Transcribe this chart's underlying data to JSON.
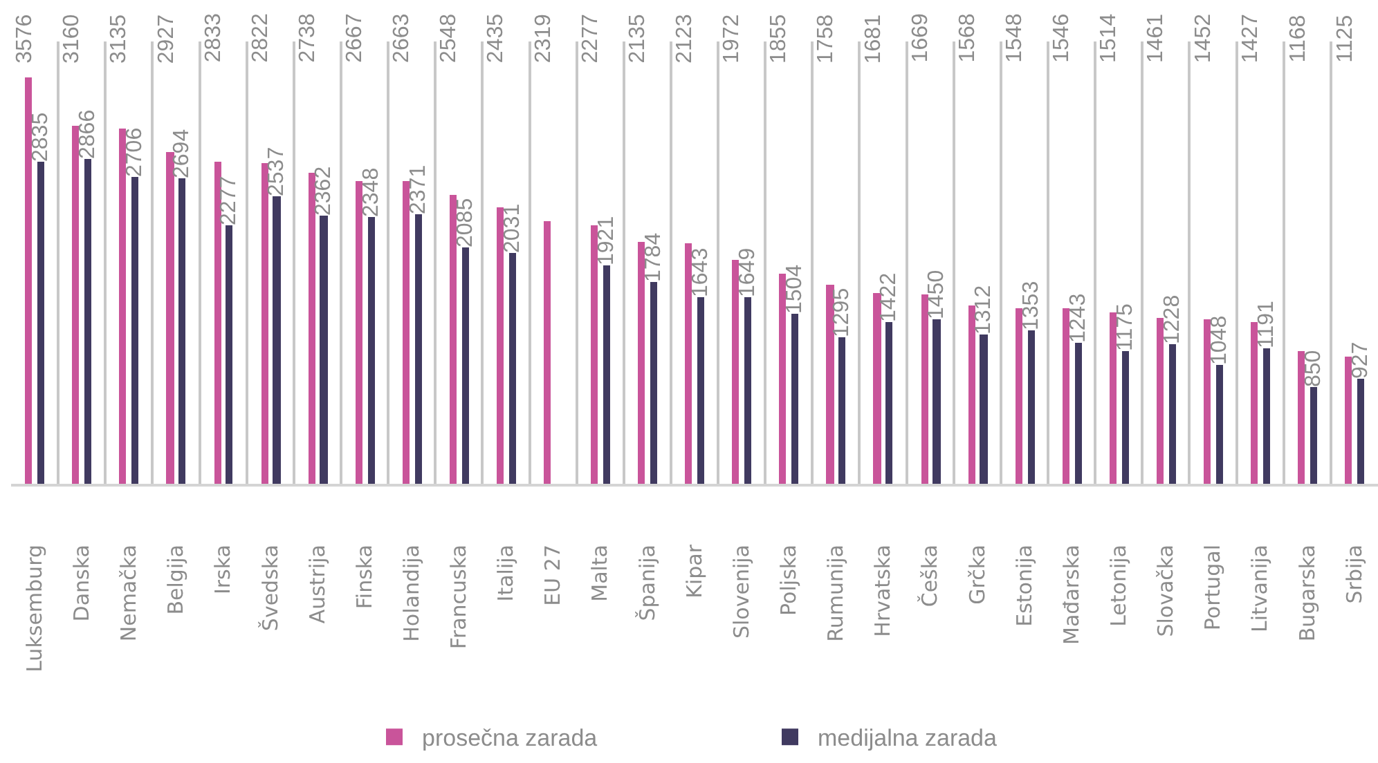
{
  "chart_data": {
    "type": "bar",
    "categories": [
      "Luksemburg",
      "Danska",
      "Nemačka",
      "Belgija",
      "Irska",
      "Švedska",
      "Austrija",
      "Finska",
      "Holandija",
      "Francuska",
      "Italija",
      "EU 27",
      "Malta",
      "Španija",
      "Kipar",
      "Slovenija",
      "Poljska",
      "Rumunija",
      "Hrvatska",
      "Češka",
      "Grčka",
      "Estonija",
      "Mađarska",
      "Letonija",
      "Slovačka",
      "Portugal",
      "Litvanija",
      "Bugarska",
      "Srbija"
    ],
    "series": [
      {
        "name": "prosečna zarada",
        "color": "#c9549a",
        "values": [
          3576,
          3160,
          3135,
          2927,
          2833,
          2822,
          2738,
          2667,
          2663,
          2548,
          2435,
          2319,
          2277,
          2135,
          2123,
          1972,
          1855,
          1758,
          1681,
          1669,
          1568,
          1548,
          1546,
          1514,
          1461,
          1452,
          1427,
          1168,
          1125
        ]
      },
      {
        "name": "medijalna zarada",
        "color": "#403a60",
        "values": [
          2835,
          2866,
          2706,
          2694,
          2277,
          2537,
          2362,
          2348,
          2371,
          2085,
          2031,
          null,
          1921,
          1784,
          1643,
          1649,
          1504,
          1295,
          1422,
          1450,
          1312,
          1353,
          1243,
          1175,
          1228,
          1048,
          1191,
          850,
          927
        ]
      }
    ],
    "data_labels": true,
    "grid": "x",
    "legend": "bottom"
  }
}
